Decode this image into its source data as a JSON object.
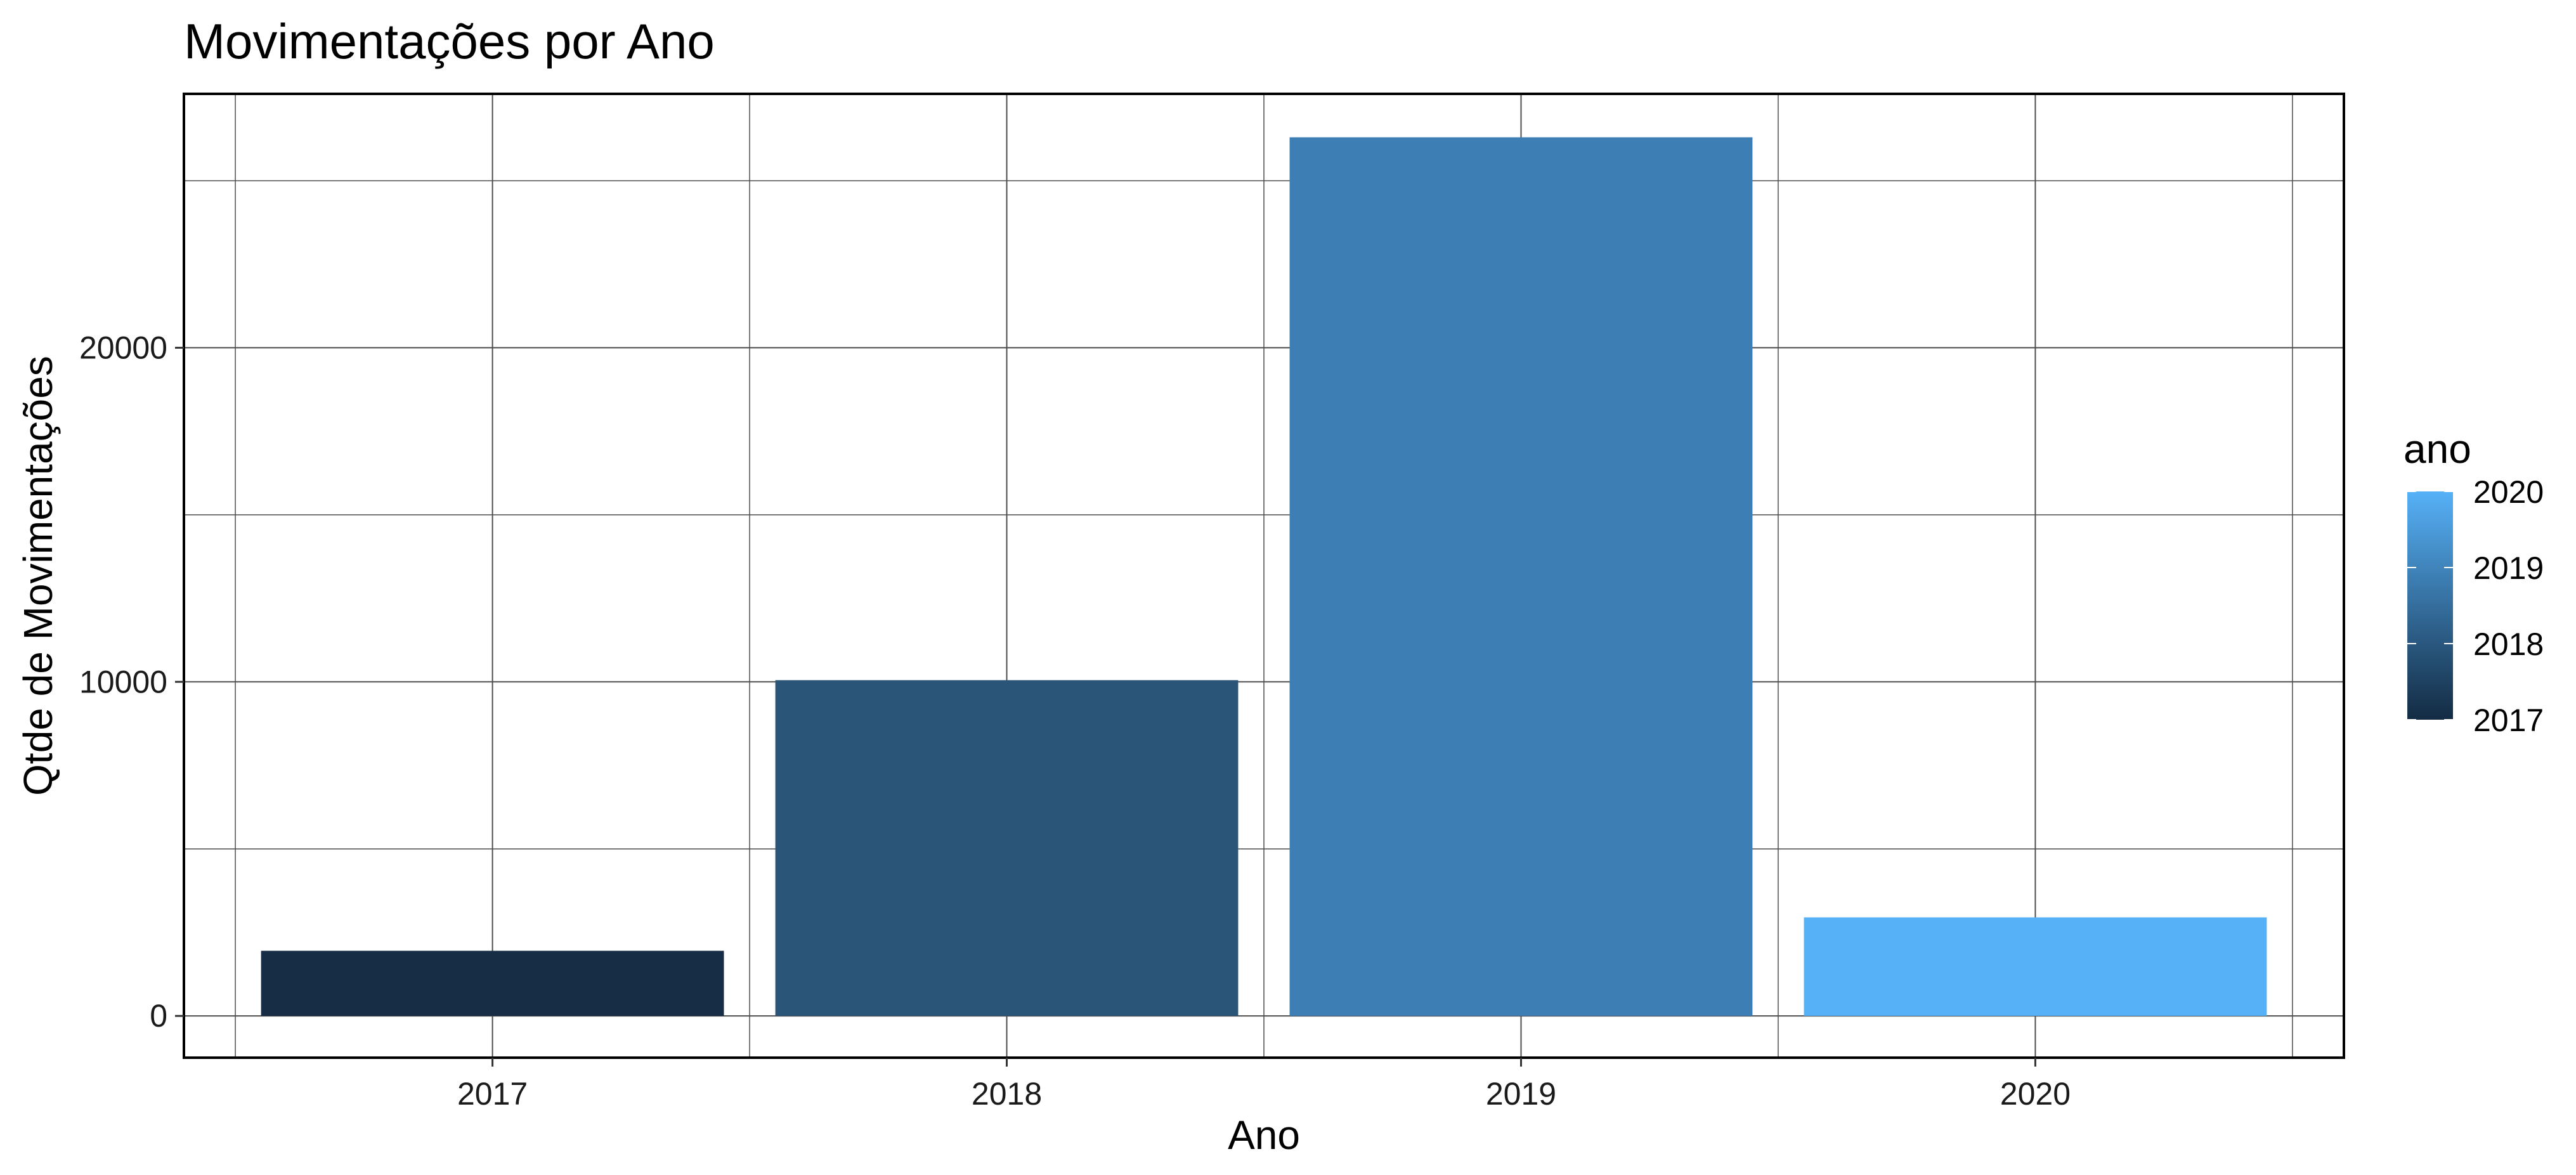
{
  "chart_data": {
    "type": "bar",
    "title": "Movimentações por Ano",
    "xlabel": "Ano",
    "ylabel": "Qtde de Movimentações",
    "categories": [
      "2017",
      "2018",
      "2019",
      "2020"
    ],
    "values": [
      1950,
      10050,
      26300,
      2950
    ],
    "ylim": [
      -1250,
      27600
    ],
    "yticks": [
      0,
      10000,
      20000
    ],
    "yminor": [
      5000,
      15000,
      25000
    ],
    "grid": true,
    "bar_colors": [
      "#172D46",
      "#2A5579",
      "#3D7FB4",
      "#56B1F7"
    ],
    "legend": {
      "title": "ano",
      "type": "colorbar",
      "placement": "right",
      "labels": [
        "2020",
        "2019",
        "2018",
        "2017"
      ],
      "gradient": [
        "#56B1F7",
        "#132B43"
      ]
    }
  }
}
